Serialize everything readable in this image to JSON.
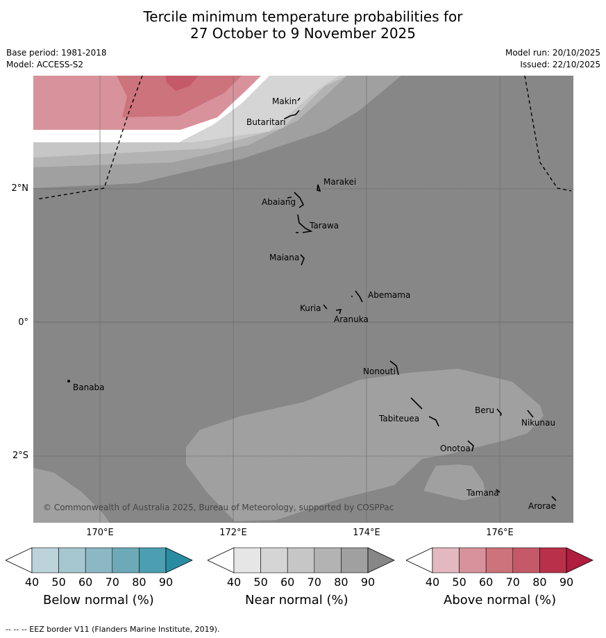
{
  "title_line1": "Tercile minimum temperature probabilities for",
  "title_line2": "27 October to 9 November 2025",
  "base_period": "Base period: 1981-2018",
  "model": "Model: ACCESS-S2",
  "model_run": "Model run: 20/10/2025",
  "issued": "Issued: 22/10/2025",
  "lat_labels": [
    "2°N",
    "0°",
    "2°S"
  ],
  "lon_labels": [
    "170°E",
    "172°E",
    "174°E",
    "176°E"
  ],
  "places": [
    "Makin",
    "Butaritari",
    "Marakei",
    "Abaiang",
    "Tarawa",
    "Maiana",
    "Abemama",
    "Kuria",
    "Aranuka",
    "Nonouti",
    "Banaba",
    "Beru",
    "Tabiteuea",
    "Nikunau",
    "Onotoa",
    "Tamana",
    "Arorae"
  ],
  "copyright": "© Commonwealth of Australia 2025, Bureau of Meteorology, supported by COSPPac",
  "colorbars": [
    {
      "title": "Below normal (%)",
      "ticks": [
        "40",
        "50",
        "60",
        "70",
        "80",
        "90"
      ],
      "colors": [
        "#ffffff",
        "#bcd3db",
        "#a6c7cf",
        "#8cb8c4",
        "#6ea9b8",
        "#4b9fb0",
        "#2a8ca3"
      ]
    },
    {
      "title": "Near normal (%)",
      "ticks": [
        "40",
        "50",
        "60",
        "70",
        "80",
        "90"
      ],
      "colors": [
        "#ffffff",
        "#e6e6e6",
        "#d5d5d5",
        "#c6c6c6",
        "#b3b3b3",
        "#a0a0a0",
        "#878787"
      ]
    },
    {
      "title": "Above normal (%)",
      "ticks": [
        "40",
        "50",
        "60",
        "70",
        "80",
        "90"
      ],
      "colors": [
        "#ffffff",
        "#e3b8c0",
        "#d8929b",
        "#cc737c",
        "#c45a68",
        "#b9304b",
        "#b01d3d"
      ]
    }
  ],
  "footer": "--  --  -- EEZ border V11 (Flanders Marine Institute, 2019)."
}
